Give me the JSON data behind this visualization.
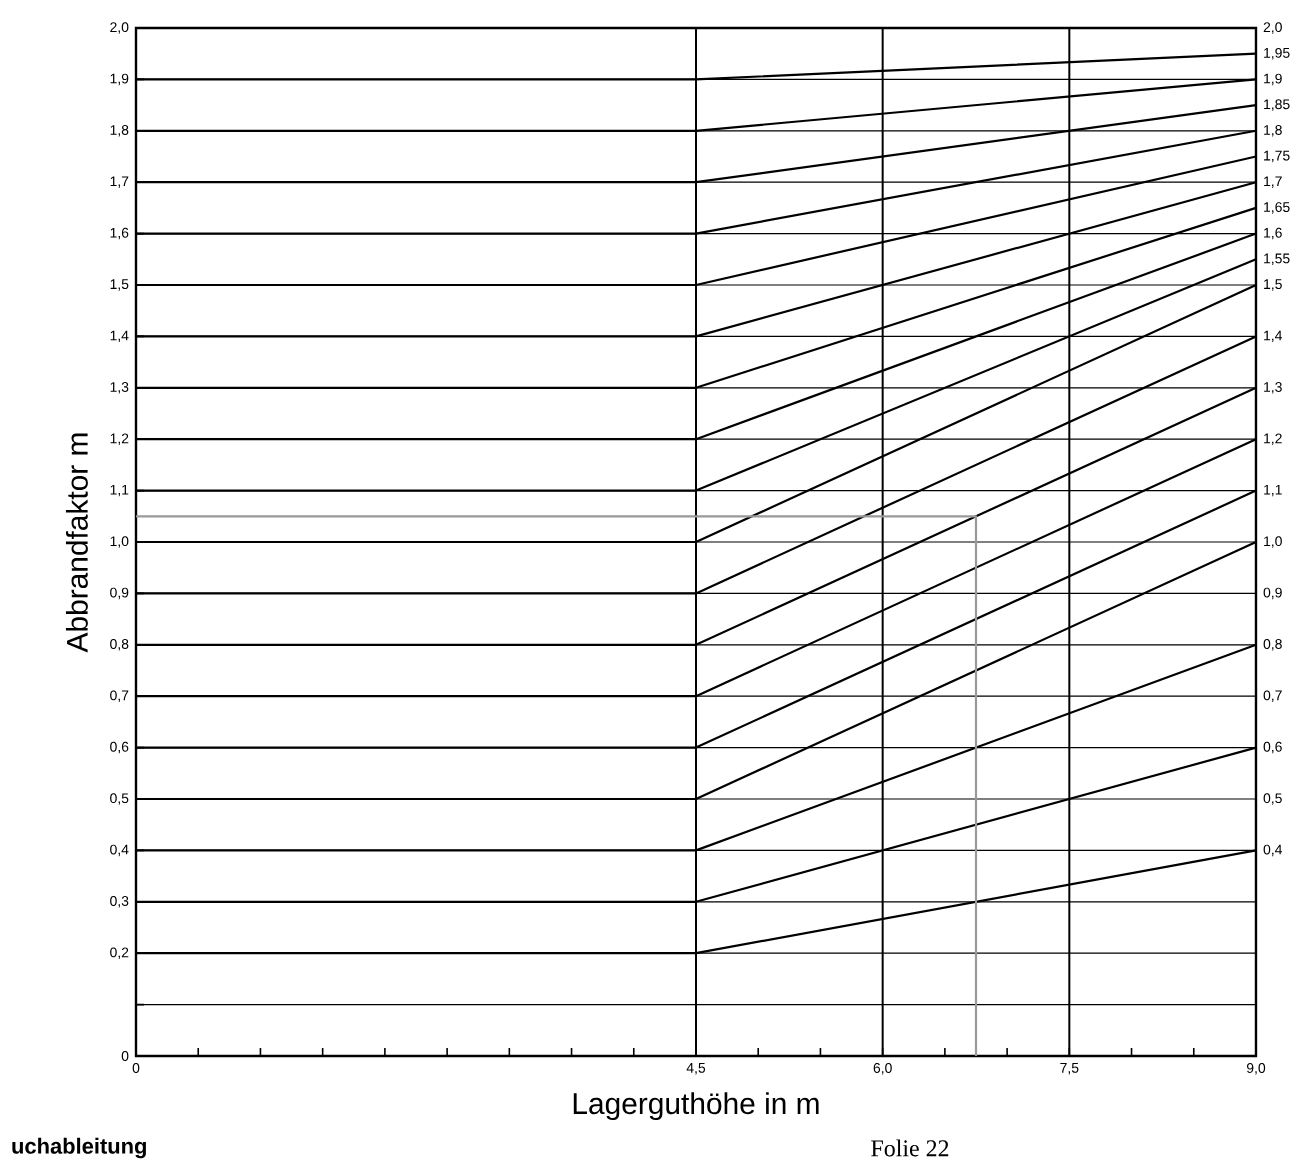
{
  "chart_data": {
    "type": "line",
    "xlabel": "Lagerguthöhe in m",
    "ylabel": "Abbrandfaktor m",
    "annotations": [
      "uchableitung",
      "Folie 22"
    ],
    "xlim": [
      0,
      9
    ],
    "ylim": [
      0,
      2
    ],
    "y2lim": [
      0,
      2
    ],
    "xticks": [
      {
        "value": 0,
        "label": "0"
      },
      {
        "value": 0.5,
        "label": null
      },
      {
        "value": 1,
        "label": null
      },
      {
        "value": 1.5,
        "label": null
      },
      {
        "value": 2,
        "label": null
      },
      {
        "value": 2.5,
        "label": null
      },
      {
        "value": 3,
        "label": null
      },
      {
        "value": 3.5,
        "label": null
      },
      {
        "value": 4,
        "label": null
      },
      {
        "value": 4.5,
        "label": "4,5"
      },
      {
        "value": 5,
        "label": null
      },
      {
        "value": 5.5,
        "label": null
      },
      {
        "value": 6,
        "label": "6,0"
      },
      {
        "value": 6.5,
        "label": null
      },
      {
        "value": 7,
        "label": null
      },
      {
        "value": 7.5,
        "label": "7,5"
      },
      {
        "value": 8,
        "label": null
      },
      {
        "value": 8.5,
        "label": null
      },
      {
        "value": 9,
        "label": "9,0"
      }
    ],
    "yticks": [
      {
        "value": 0,
        "label": "0"
      },
      {
        "value": 0.1,
        "label": null
      },
      {
        "value": 0.2,
        "label": "0,2"
      },
      {
        "value": 0.3,
        "label": "0,3"
      },
      {
        "value": 0.4,
        "label": "0,4"
      },
      {
        "value": 0.5,
        "label": "0,5"
      },
      {
        "value": 0.6,
        "label": "0,6"
      },
      {
        "value": 0.7,
        "label": "0,7"
      },
      {
        "value": 0.8,
        "label": "0,8"
      },
      {
        "value": 0.9,
        "label": "0,9"
      },
      {
        "value": 1.0,
        "label": "1,0"
      },
      {
        "value": 1.1,
        "label": "1,1"
      },
      {
        "value": 1.2,
        "label": "1,2"
      },
      {
        "value": 1.3,
        "label": "1,3"
      },
      {
        "value": 1.4,
        "label": "1,4"
      },
      {
        "value": 1.5,
        "label": "1,5"
      },
      {
        "value": 1.6,
        "label": "1,6"
      },
      {
        "value": 1.7,
        "label": "1,7"
      },
      {
        "value": 1.8,
        "label": "1,8"
      },
      {
        "value": 1.9,
        "label": "1,9"
      },
      {
        "value": 2.0,
        "label": "2,0"
      }
    ],
    "y2ticks": [
      {
        "value": 0.4,
        "label": "0,4"
      },
      {
        "value": 0.5,
        "label": "0,5"
      },
      {
        "value": 0.6,
        "label": "0,6"
      },
      {
        "value": 0.7,
        "label": "0,7"
      },
      {
        "value": 0.8,
        "label": "0,8"
      },
      {
        "value": 0.9,
        "label": "0,9"
      },
      {
        "value": 1.0,
        "label": "1,0"
      },
      {
        "value": 1.1,
        "label": "1,1"
      },
      {
        "value": 1.2,
        "label": "1,2"
      },
      {
        "value": 1.3,
        "label": "1,3"
      },
      {
        "value": 1.4,
        "label": "1,4"
      },
      {
        "value": 1.5,
        "label": "1,5"
      },
      {
        "value": 1.55,
        "label": "1,55"
      },
      {
        "value": 1.6,
        "label": "1,6"
      },
      {
        "value": 1.65,
        "label": "1,65"
      },
      {
        "value": 1.7,
        "label": "1,7"
      },
      {
        "value": 1.75,
        "label": "1,75"
      },
      {
        "value": 1.8,
        "label": "1,8"
      },
      {
        "value": 1.85,
        "label": "1,85"
      },
      {
        "value": 1.9,
        "label": "1,9"
      },
      {
        "value": 1.95,
        "label": "1,95"
      },
      {
        "value": 2.0,
        "label": "2,0"
      }
    ],
    "grid": "y",
    "marker": "none",
    "line_style": "solid",
    "ref_lines": [
      {
        "axis": "x",
        "value": 4.5
      },
      {
        "axis": "x",
        "value": 6.0
      },
      {
        "axis": "x",
        "value": 7.5
      }
    ],
    "series": [
      {
        "color": "#000000",
        "x": [
          0,
          4.5,
          9
        ],
        "values": [
          0.2,
          0.2,
          0.4
        ]
      },
      {
        "color": "#000000",
        "x": [
          0,
          4.5,
          9
        ],
        "values": [
          0.3,
          0.3,
          0.6
        ]
      },
      {
        "color": "#000000",
        "x": [
          0,
          4.5,
          9
        ],
        "values": [
          0.4,
          0.4,
          0.8
        ]
      },
      {
        "color": "#000000",
        "x": [
          0,
          4.5,
          9
        ],
        "values": [
          0.5,
          0.5,
          1.0
        ]
      },
      {
        "color": "#000000",
        "x": [
          0,
          4.5,
          9
        ],
        "values": [
          0.6,
          0.6,
          1.1
        ]
      },
      {
        "color": "#000000",
        "x": [
          0,
          4.5,
          9
        ],
        "values": [
          0.7,
          0.7,
          1.2
        ]
      },
      {
        "color": "#000000",
        "x": [
          0,
          4.5,
          9
        ],
        "values": [
          0.8,
          0.8,
          1.3
        ]
      },
      {
        "color": "#000000",
        "x": [
          0,
          4.5,
          9
        ],
        "values": [
          0.9,
          0.9,
          1.4
        ]
      },
      {
        "color": "#000000",
        "x": [
          0,
          4.5,
          9
        ],
        "values": [
          1.0,
          1.0,
          1.5
        ]
      },
      {
        "color": "#000000",
        "x": [
          0,
          4.5,
          9
        ],
        "values": [
          1.1,
          1.1,
          1.55
        ]
      },
      {
        "color": "#000000",
        "x": [
          0,
          4.5,
          9
        ],
        "values": [
          1.2,
          1.2,
          1.6
        ]
      },
      {
        "color": "#000000",
        "x": [
          0,
          4.5,
          9
        ],
        "values": [
          1.3,
          1.3,
          1.65
        ]
      },
      {
        "color": "#000000",
        "x": [
          0,
          4.5,
          9
        ],
        "values": [
          1.4,
          1.4,
          1.7
        ]
      },
      {
        "color": "#000000",
        "x": [
          0,
          4.5,
          9
        ],
        "values": [
          1.5,
          1.5,
          1.75
        ]
      },
      {
        "color": "#000000",
        "x": [
          0,
          4.5,
          9
        ],
        "values": [
          1.6,
          1.6,
          1.8
        ]
      },
      {
        "color": "#000000",
        "x": [
          0,
          4.5,
          9
        ],
        "values": [
          1.7,
          1.7,
          1.85
        ]
      },
      {
        "color": "#000000",
        "x": [
          0,
          4.5,
          9
        ],
        "values": [
          1.8,
          1.8,
          1.9
        ]
      },
      {
        "color": "#000000",
        "x": [
          0,
          4.5,
          9
        ],
        "values": [
          1.9,
          1.9,
          1.95
        ]
      },
      {
        "color": "#999999",
        "x": [
          6.75,
          6.75,
          0
        ],
        "values": [
          0,
          1.05,
          1.05
        ]
      }
    ]
  }
}
